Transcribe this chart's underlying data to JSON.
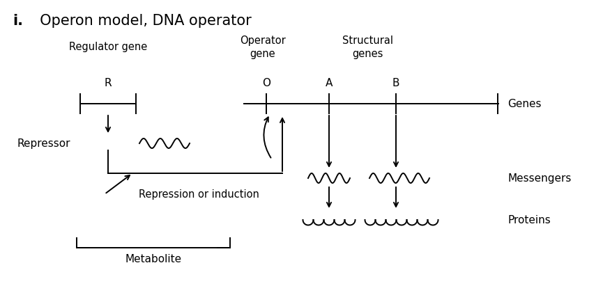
{
  "title_i": "i.",
  "title_text": "  Operon model, DNA operator",
  "background_color": "#ffffff",
  "text_color": "#000000",
  "figsize": [
    8.65,
    4.35
  ],
  "dpi": 100,
  "labels": {
    "regulator_gene": "Regulator gene",
    "operator_gene": "Operator\ngene",
    "structural_genes": "Structural\ngenes",
    "R": "R",
    "O": "O",
    "A": "A",
    "B": "B",
    "genes": "Genes",
    "repressor": "Repressor",
    "messengers": "Messengers",
    "proteins": "Proteins",
    "repression": "Repression or induction",
    "metabolite": "Metabolite"
  }
}
